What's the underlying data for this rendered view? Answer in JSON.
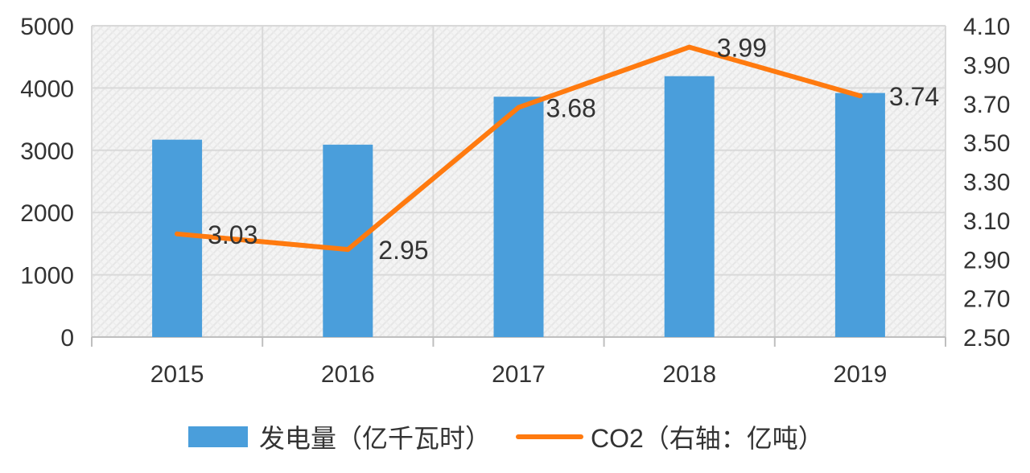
{
  "chart_data": {
    "type": "bar",
    "categories": [
      "2015",
      "2016",
      "2017",
      "2018",
      "2019"
    ],
    "series": [
      {
        "name": "发电量（亿千瓦时）",
        "type": "bar",
        "axis": "left",
        "color": "#4a9edb",
        "values": [
          3170,
          3090,
          3860,
          4190,
          3920
        ]
      },
      {
        "name": "CO2（右轴：亿吨）",
        "type": "line",
        "axis": "right",
        "color": "#ff7a0f",
        "values": [
          3.03,
          2.95,
          3.68,
          3.99,
          3.74
        ],
        "data_labels": [
          "3.03",
          "2.95",
          "3.68",
          "3.99",
          "3.74"
        ]
      }
    ],
    "y_left": {
      "lim": [
        0,
        5000
      ],
      "ticks": [
        "0",
        "1000",
        "2000",
        "3000",
        "4000",
        "5000"
      ]
    },
    "y_right": {
      "lim": [
        2.5,
        4.1
      ],
      "ticks": [
        "2.50",
        "2.70",
        "2.90",
        "3.10",
        "3.30",
        "3.50",
        "3.70",
        "3.90",
        "4.10"
      ]
    },
    "grid": true,
    "legend": "bottom"
  }
}
